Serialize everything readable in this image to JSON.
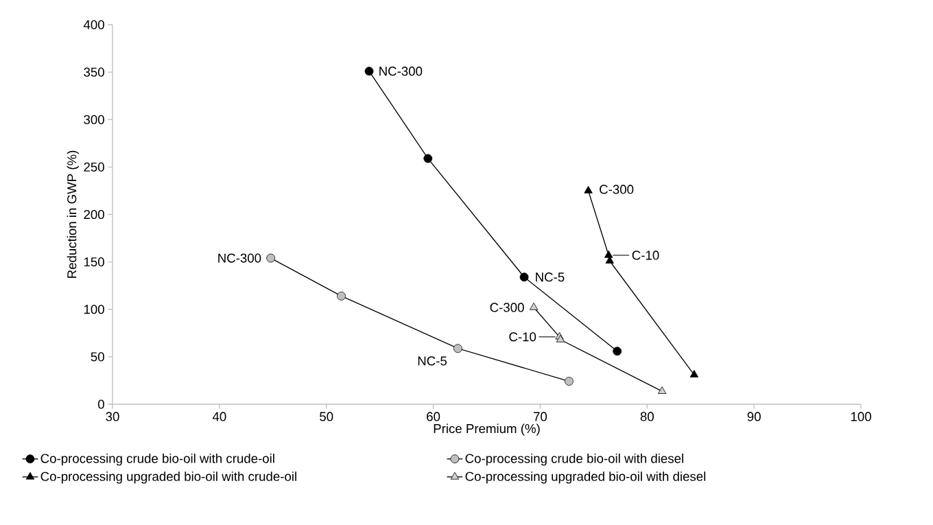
{
  "chart_data": {
    "type": "line",
    "xlabel": "Price Premium (%)",
    "ylabel": "Reduction in GWP (%)",
    "xlim": [
      30,
      100
    ],
    "ylim": [
      0,
      400
    ],
    "xticks": [
      30,
      40,
      50,
      60,
      70,
      80,
      90,
      100
    ],
    "yticks": [
      0,
      50,
      100,
      150,
      200,
      250,
      300,
      350,
      400
    ],
    "grid": false,
    "legend": "bottom",
    "line_style": "solid",
    "series": [
      {
        "name": "Co-processing crude bio-oil with crude-oil",
        "marker": "circle",
        "color": "#000000",
        "x": [
          54.0,
          59.5,
          68.5,
          77.2
        ],
        "values": [
          351,
          259,
          134,
          55.9
        ]
      },
      {
        "name": "Co-processing crude bio-oil with diesel",
        "marker": "circle",
        "color": "#bfbfbf",
        "x": [
          44.8,
          51.4,
          62.3,
          72.7
        ],
        "values": [
          154,
          114,
          58.8,
          24.2
        ]
      },
      {
        "name": "Co-processing upgraded bio-oil with crude-oil",
        "marker": "triangle",
        "color": "#000000",
        "x": [
          74.5,
          76.4,
          76.5,
          84.4
        ],
        "values": [
          225,
          157,
          151,
          31
        ]
      },
      {
        "name": "Co-processing upgraded bio-oil with diesel",
        "marker": "triangle",
        "color": "#d0d0d0",
        "x": [
          69.4,
          71.8,
          71.9,
          81.4
        ],
        "values": [
          102,
          71,
          68,
          13.6
        ]
      }
    ],
    "annotations": [
      {
        "text": "NC-300",
        "x": 54.0,
        "y": 351
      },
      {
        "text": "NC-5",
        "x": 68.5,
        "y": 134
      },
      {
        "text": "NC-300",
        "x": 44.8,
        "y": 154
      },
      {
        "text": "NC-5",
        "x": 62.3,
        "y": 58.8
      },
      {
        "text": "C-300",
        "x": 74.5,
        "y": 225
      },
      {
        "text": "C-10",
        "x": 76.4,
        "y": 157
      },
      {
        "text": "C-300",
        "x": 69.4,
        "y": 102
      },
      {
        "text": "C-10",
        "x": 71.8,
        "y": 71
      }
    ]
  }
}
